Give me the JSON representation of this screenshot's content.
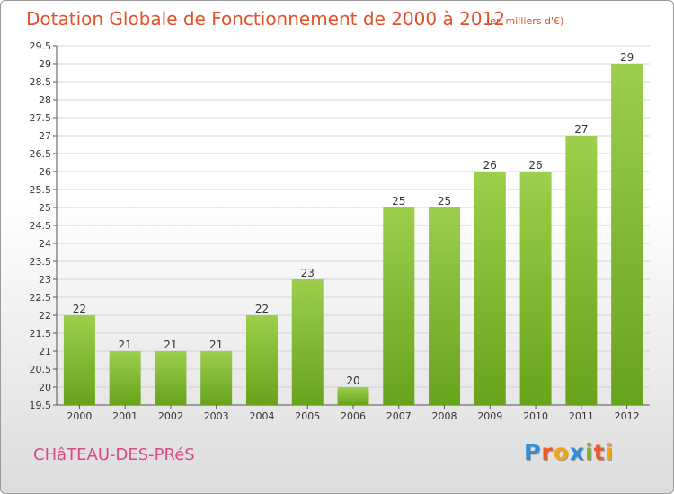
{
  "header": {
    "title": "Dotation Globale de Fonctionnement de 2000 à 2012",
    "subtitle": "(en milliers d'€)"
  },
  "footer": {
    "commune": "CHâTEAU-DES-PRéS",
    "brand": "Proxiti",
    "brand_letters": [
      {
        "char": "P",
        "color": "#2f8fd8"
      },
      {
        "char": "r",
        "color": "#e85b2a"
      },
      {
        "char": "o",
        "color": "#f2a51a"
      },
      {
        "char": "x",
        "color": "#2f8fd8"
      },
      {
        "char": "i",
        "color": "#7ab530"
      },
      {
        "char": "t",
        "color": "#e85b2a"
      },
      {
        "char": "i",
        "color": "#f2a51a"
      }
    ]
  },
  "colors": {
    "bar_light": "#9ccf4b",
    "bar_dark": "#68a31c",
    "title": "#e2512a",
    "commune": "#d94a85"
  },
  "chart_data": {
    "type": "bar",
    "categories": [
      "2000",
      "2001",
      "2002",
      "2003",
      "2004",
      "2005",
      "2006",
      "2007",
      "2008",
      "2009",
      "2010",
      "2011",
      "2012"
    ],
    "values": [
      22,
      21,
      21,
      21,
      22,
      23,
      20,
      25,
      25,
      26,
      26,
      27,
      29
    ],
    "labels": [
      "22",
      "21",
      "21",
      "21",
      "22",
      "23",
      "20",
      "25",
      "25",
      "26",
      "26",
      "27",
      "29"
    ],
    "ylim": [
      19.5,
      29.5
    ],
    "yticks": [
      "19.5",
      "20",
      "20.5",
      "21",
      "21.5",
      "22",
      "22.5",
      "23",
      "23.5",
      "24",
      "24.5",
      "25",
      "25.5",
      "26",
      "26.5",
      "27",
      "27.5",
      "28",
      "28.5",
      "29",
      "29.5"
    ],
    "grid": true
  }
}
